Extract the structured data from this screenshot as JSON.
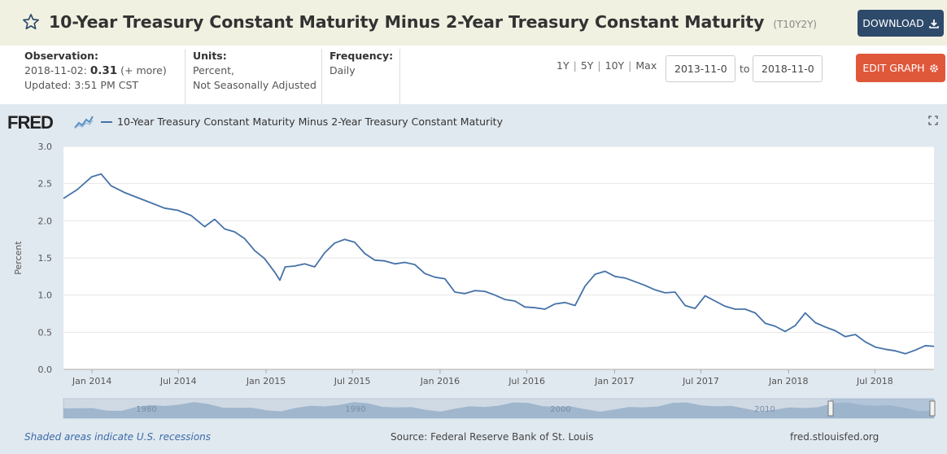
{
  "header": {
    "title": "10-Year Treasury Constant Maturity Minus 2-Year Treasury Constant Maturity",
    "series_id": "(T10Y2Y)",
    "download_label": "DOWNLOAD"
  },
  "meta": {
    "observation_label": "Observation:",
    "observation_date": "2018-11-02:",
    "observation_value": "0.31",
    "observation_more": "(+ more)",
    "updated": "Updated: 3:51 PM CST",
    "units_label": "Units:",
    "units_line1": "Percent,",
    "units_line2": "Not Seasonally Adjusted",
    "frequency_label": "Frequency:",
    "frequency_value": "Daily"
  },
  "ranges": [
    "1Y",
    "5Y",
    "10Y",
    "Max"
  ],
  "date_from": "2013-11-0",
  "date_to": "2018-11-0",
  "to_label": "to",
  "edit_label": "EDIT GRAPH",
  "logo_text": "FRED",
  "footer": {
    "recessions": "Shaded areas indicate U.S. recessions",
    "source": "Source: Federal Reserve Bank of St. Louis",
    "site": "fred.stlouisfed.org"
  },
  "colors": {
    "series": "#4572a7",
    "download": "#2e4a6b",
    "edit": "#e0583a",
    "plot_bg": "#e1e9f0"
  },
  "chart_data": {
    "type": "line",
    "ylabel": "Percent",
    "ylim": [
      0,
      3.0
    ],
    "yticks": [
      "0.0",
      "0.5",
      "1.0",
      "1.5",
      "2.0",
      "2.5",
      "3.0"
    ],
    "xlim": [
      "2013-11-02",
      "2018-11-02"
    ],
    "xticks": [
      {
        "label": "Jan 2014",
        "date": "2014-01-01"
      },
      {
        "label": "Jul 2014",
        "date": "2014-07-01"
      },
      {
        "label": "Jan 2015",
        "date": "2015-01-01"
      },
      {
        "label": "Jul 2015",
        "date": "2015-07-01"
      },
      {
        "label": "Jan 2016",
        "date": "2016-01-01"
      },
      {
        "label": "Jul 2016",
        "date": "2016-07-01"
      },
      {
        "label": "Jan 2017",
        "date": "2017-01-01"
      },
      {
        "label": "Jul 2017",
        "date": "2017-07-01"
      },
      {
        "label": "Jan 2018",
        "date": "2018-01-01"
      },
      {
        "label": "Jul 2018",
        "date": "2018-07-01"
      }
    ],
    "grid": true,
    "legend": "top-left",
    "navigator_labels": [
      "1980",
      "1990",
      "2000",
      "2010"
    ],
    "series": [
      {
        "name": "10-Year Treasury Constant Maturity Minus 2-Year Treasury Constant Maturity",
        "x": [
          "2013-11-02",
          "2013-12-01",
          "2013-12-31",
          "2014-01-20",
          "2014-02-10",
          "2014-03-10",
          "2014-04-07",
          "2014-05-05",
          "2014-06-02",
          "2014-06-30",
          "2014-07-28",
          "2014-08-25",
          "2014-09-15",
          "2014-10-06",
          "2014-10-27",
          "2014-11-17",
          "2014-12-08",
          "2014-12-29",
          "2015-01-19",
          "2015-01-30",
          "2015-02-10",
          "2015-03-02",
          "2015-03-23",
          "2015-04-13",
          "2015-05-04",
          "2015-05-25",
          "2015-06-15",
          "2015-07-06",
          "2015-07-27",
          "2015-08-17",
          "2015-09-07",
          "2015-09-28",
          "2015-10-19",
          "2015-11-09",
          "2015-11-30",
          "2015-12-21",
          "2016-01-11",
          "2016-02-01",
          "2016-02-22",
          "2016-03-14",
          "2016-04-04",
          "2016-04-25",
          "2016-05-16",
          "2016-06-06",
          "2016-06-27",
          "2016-07-18",
          "2016-08-08",
          "2016-08-29",
          "2016-09-19",
          "2016-10-10",
          "2016-10-31",
          "2016-11-21",
          "2016-12-12",
          "2017-01-02",
          "2017-01-23",
          "2017-02-13",
          "2017-03-06",
          "2017-03-27",
          "2017-04-17",
          "2017-05-08",
          "2017-05-29",
          "2017-06-19",
          "2017-07-10",
          "2017-07-31",
          "2017-08-21",
          "2017-09-11",
          "2017-10-02",
          "2017-10-23",
          "2017-11-13",
          "2017-12-04",
          "2017-12-25",
          "2018-01-15",
          "2018-02-05",
          "2018-02-26",
          "2018-03-19",
          "2018-04-09",
          "2018-04-30",
          "2018-05-21",
          "2018-06-11",
          "2018-07-02",
          "2018-07-23",
          "2018-08-13",
          "2018-09-03",
          "2018-09-24",
          "2018-10-15",
          "2018-11-02"
        ],
        "values": [
          2.3,
          2.42,
          2.59,
          2.63,
          2.47,
          2.38,
          2.31,
          2.24,
          2.17,
          2.14,
          2.07,
          1.92,
          2.02,
          1.89,
          1.85,
          1.76,
          1.6,
          1.49,
          1.31,
          1.2,
          1.38,
          1.39,
          1.42,
          1.38,
          1.57,
          1.7,
          1.75,
          1.71,
          1.56,
          1.47,
          1.46,
          1.42,
          1.44,
          1.41,
          1.29,
          1.24,
          1.22,
          1.04,
          1.02,
          1.06,
          1.05,
          1.0,
          0.94,
          0.92,
          0.84,
          0.83,
          0.81,
          0.88,
          0.9,
          0.86,
          1.12,
          1.28,
          1.32,
          1.25,
          1.23,
          1.18,
          1.13,
          1.07,
          1.03,
          1.04,
          0.86,
          0.82,
          0.99,
          0.92,
          0.85,
          0.81,
          0.81,
          0.76,
          0.62,
          0.58,
          0.51,
          0.59,
          0.76,
          0.63,
          0.57,
          0.52,
          0.44,
          0.47,
          0.37,
          0.3,
          0.27,
          0.25,
          0.21,
          0.26,
          0.32,
          0.31
        ]
      }
    ]
  }
}
